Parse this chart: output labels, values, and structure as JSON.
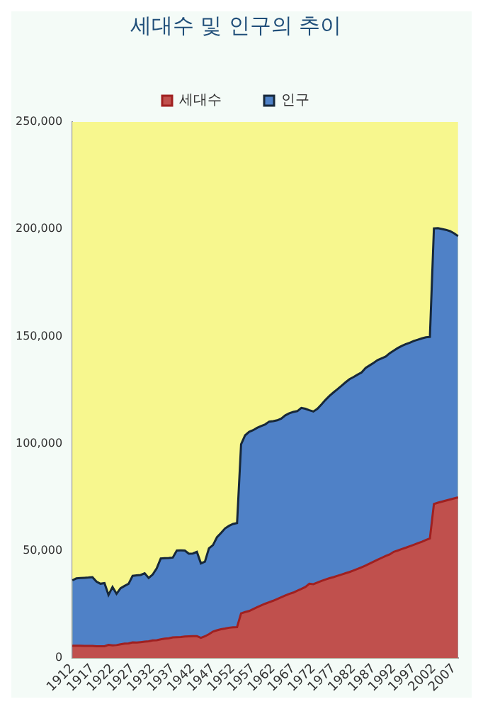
{
  "chart_data": {
    "type": "area",
    "title": "세대수 및 인구의 추이",
    "categories": [
      "1912",
      null,
      null,
      null,
      null,
      "1917",
      null,
      null,
      null,
      null,
      "1922",
      null,
      null,
      null,
      null,
      "1927",
      null,
      null,
      null,
      null,
      "1932",
      null,
      null,
      null,
      null,
      "1937",
      null,
      null,
      null,
      null,
      "1942",
      null,
      null,
      null,
      null,
      "1947",
      null,
      null,
      null,
      null,
      "1952",
      null,
      null,
      null,
      null,
      "1957",
      null,
      null,
      null,
      null,
      "1962",
      null,
      null,
      null,
      null,
      "1967",
      null,
      null,
      null,
      null,
      "1972",
      null,
      null,
      null,
      null,
      "1977",
      null,
      null,
      null,
      null,
      "1982",
      null,
      null,
      null,
      null,
      "1987",
      null,
      null,
      null,
      null,
      "1992",
      null,
      null,
      null,
      null,
      "1997",
      null,
      null,
      null,
      null,
      "2002",
      null,
      null,
      null,
      null,
      "2007",
      null
    ],
    "series": [
      {
        "name": "인구",
        "color": "#4f81c7",
        "values": [
          36300,
          37200,
          37400,
          37500,
          37600,
          37800,
          35700,
          34700,
          35000,
          29500,
          33200,
          30000,
          32600,
          33700,
          34700,
          38400,
          38600,
          38800,
          39600,
          37400,
          39000,
          41900,
          46500,
          46600,
          46700,
          46900,
          50200,
          50300,
          50200,
          48700,
          48800,
          49600,
          44200,
          45000,
          51200,
          52700,
          56400,
          58400,
          60500,
          61700,
          62600,
          63000,
          99700,
          103900,
          105500,
          106300,
          107400,
          108200,
          109000,
          110300,
          110500,
          110900,
          111700,
          113200,
          114200,
          114800,
          115200,
          116700,
          116300,
          115600,
          115000,
          116300,
          118300,
          120400,
          122300,
          123900,
          125400,
          127000,
          128600,
          130100,
          131100,
          132200,
          133200,
          135300,
          136500,
          137700,
          139000,
          139800,
          140600,
          142200,
          143400,
          144600,
          145600,
          146400,
          147100,
          147900,
          148500,
          149100,
          149600,
          149800,
          200400,
          200500,
          200100,
          199700,
          199100,
          198100,
          196800
        ]
      },
      {
        "name": "세대수",
        "color": "#c0504d",
        "values": [
          5800,
          5800,
          5800,
          5700,
          5700,
          5700,
          5600,
          5600,
          5600,
          6200,
          6000,
          6100,
          6500,
          6800,
          6900,
          7400,
          7300,
          7500,
          7700,
          7900,
          8300,
          8400,
          8800,
          9100,
          9300,
          9700,
          9800,
          9900,
          10100,
          10200,
          10300,
          10300,
          9500,
          10200,
          11200,
          12400,
          13000,
          13500,
          13800,
          14200,
          14400,
          14500,
          20900,
          21500,
          22000,
          22900,
          23800,
          24600,
          25400,
          26100,
          26800,
          27600,
          28400,
          29200,
          30000,
          30600,
          31500,
          32300,
          33200,
          34700,
          34500,
          35300,
          36000,
          36700,
          37300,
          37800,
          38400,
          39000,
          39600,
          40200,
          40900,
          41600,
          42400,
          43200,
          44100,
          45000,
          45900,
          46800,
          47700,
          48400,
          49600,
          50200,
          50900,
          51500,
          52200,
          52900,
          53600,
          54300,
          55100,
          55800,
          71900,
          72500,
          73000,
          73500,
          74000,
          74500,
          75000
        ]
      }
    ],
    "ylim": [
      0,
      250000
    ],
    "yticks": [
      {
        "value": 0,
        "label": "0"
      },
      {
        "value": 50000,
        "label": "50,000"
      },
      {
        "value": 100000,
        "label": "100,000"
      },
      {
        "value": 150000,
        "label": "150,000"
      },
      {
        "value": 200000,
        "label": "200,000"
      },
      {
        "value": 250000,
        "label": "250,000"
      }
    ],
    "legend": "top",
    "marker": "none"
  }
}
